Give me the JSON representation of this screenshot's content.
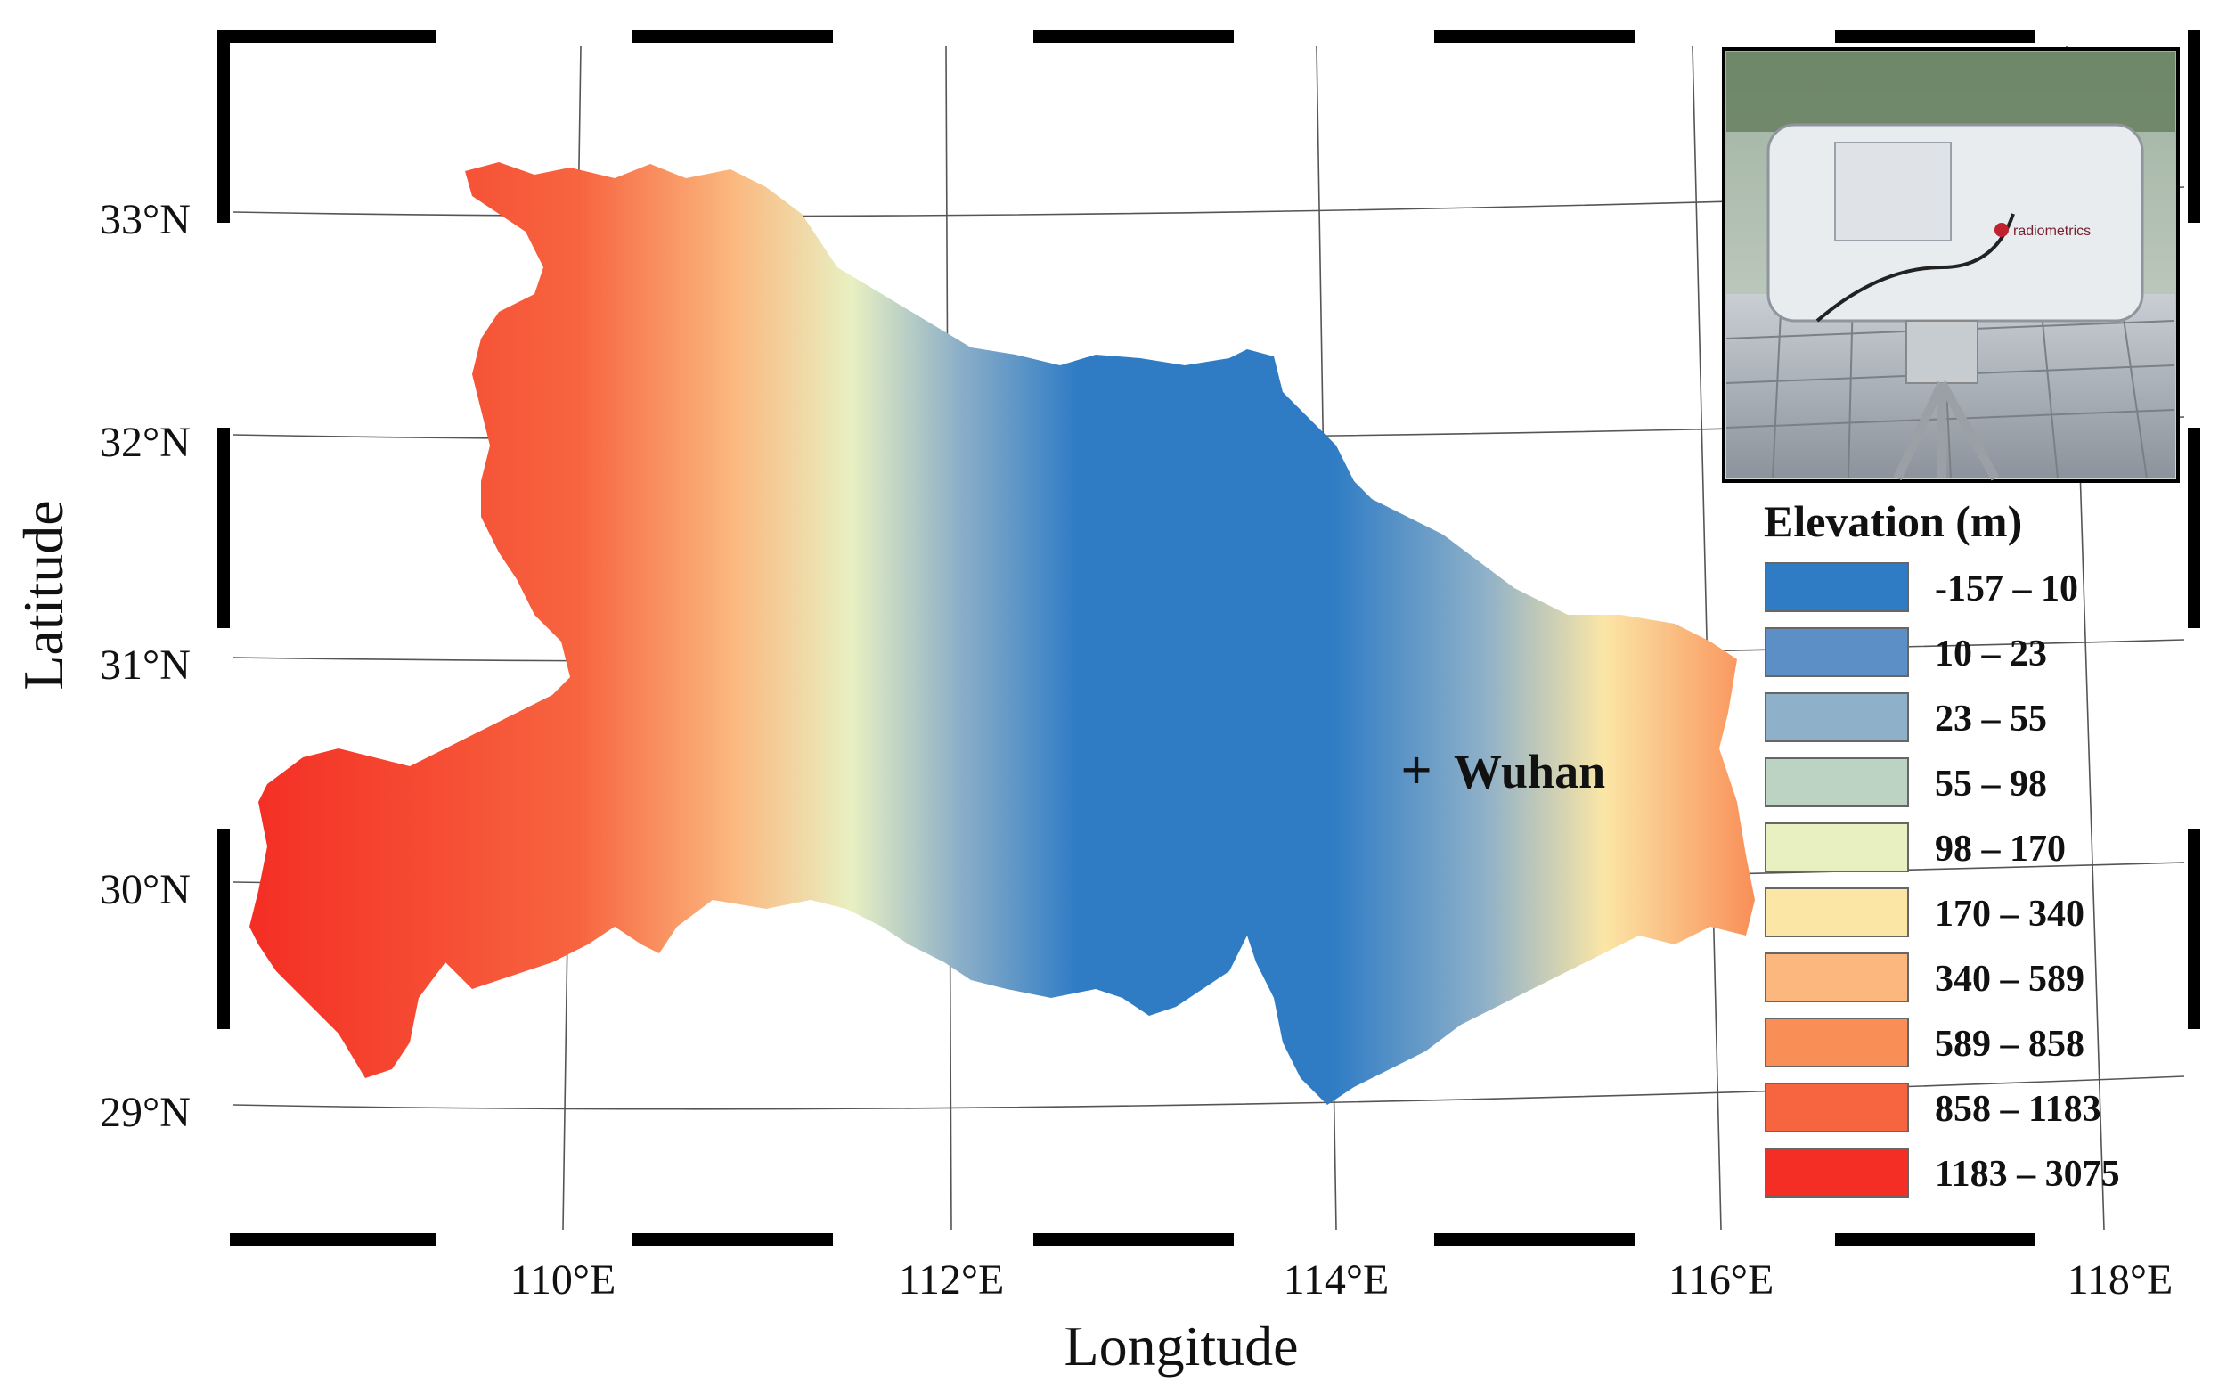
{
  "axes": {
    "xlabel": "Longitude",
    "ylabel": "Latitude",
    "lon_ticks": [
      "110°E",
      "112°E",
      "114°E",
      "116°E",
      "118°E"
    ],
    "lat_ticks": [
      "33°N",
      "32°N",
      "31°N",
      "30°N",
      "29°N"
    ]
  },
  "marker": {
    "symbol": "+",
    "label": "Wuhan"
  },
  "legend": {
    "title": "Elevation (m)",
    "items": [
      {
        "label": "-157 – 10",
        "color": "#2f7cc5"
      },
      {
        "label": "10 – 23",
        "color": "#5c8fc5"
      },
      {
        "label": "23 – 55",
        "color": "#8eb0c8"
      },
      {
        "label": "55 – 98",
        "color": "#bcd2c2"
      },
      {
        "label": "98 – 170",
        "color": "#e8f0c2"
      },
      {
        "label": "170 – 340",
        "color": "#fbe6a6"
      },
      {
        "label": "340 – 589",
        "color": "#fbb77e"
      },
      {
        "label": "589 – 858",
        "color": "#f98e57"
      },
      {
        "label": "858 – 1183",
        "color": "#f76540"
      },
      {
        "label": "1183 – 3075",
        "color": "#f42e24"
      }
    ]
  },
  "inset_photo": {
    "brand_text": "radiometrics"
  }
}
